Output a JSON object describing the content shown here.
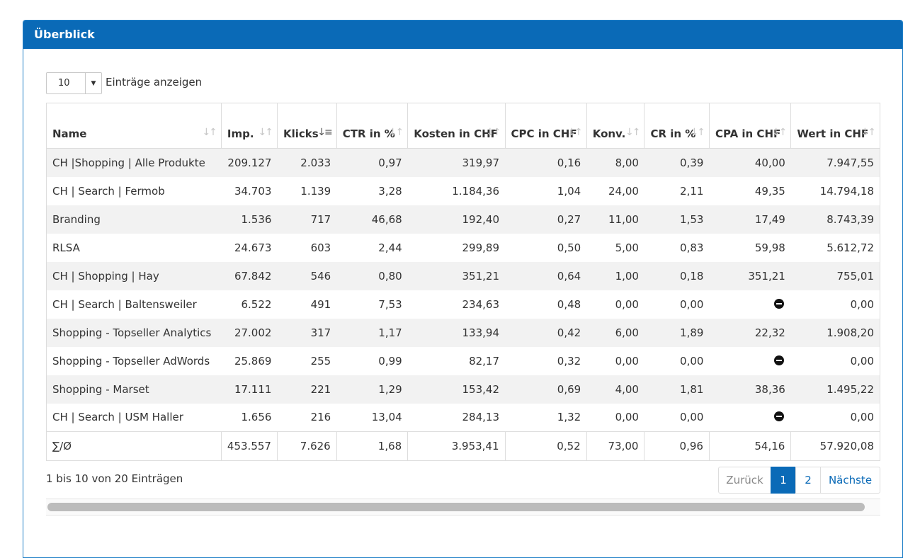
{
  "panel": {
    "title": "Überblick"
  },
  "length": {
    "value": "10",
    "label": "Einträge anzeigen"
  },
  "columns": [
    {
      "label": "Name",
      "sort": "none"
    },
    {
      "label": "Imp.",
      "sort": "none"
    },
    {
      "label": "Klicks",
      "sort": "desc"
    },
    {
      "label": "CTR in %",
      "sort": "none"
    },
    {
      "label": "Kosten in CHF",
      "sort": "none"
    },
    {
      "label": "CPC in CHF",
      "sort": "none"
    },
    {
      "label": "Konv.",
      "sort": "none"
    },
    {
      "label": "CR in %",
      "sort": "none"
    },
    {
      "label": "CPA in CHF",
      "sort": "none"
    },
    {
      "label": "Wert in CHF",
      "sort": "none"
    }
  ],
  "rows": [
    [
      "CH |Shopping | Alle Produkte",
      "209.127",
      "2.033",
      "0,97",
      "319,97",
      "0,16",
      "8,00",
      "0,39",
      "40,00",
      "7.947,55"
    ],
    [
      "CH | Search | Fermob",
      "34.703",
      "1.139",
      "3,28",
      "1.184,36",
      "1,04",
      "24,00",
      "2,11",
      "49,35",
      "14.794,18"
    ],
    [
      "Branding",
      "1.536",
      "717",
      "46,68",
      "192,40",
      "0,27",
      "11,00",
      "1,53",
      "17,49",
      "8.743,39"
    ],
    [
      "RLSA",
      "24.673",
      "603",
      "2,44",
      "299,89",
      "0,50",
      "5,00",
      "0,83",
      "59,98",
      "5.612,72"
    ],
    [
      "CH | Shopping | Hay",
      "67.842",
      "546",
      "0,80",
      "351,21",
      "0,64",
      "1,00",
      "0,18",
      "351,21",
      "755,01"
    ],
    [
      "CH | Search | Baltensweiler",
      "6.522",
      "491",
      "7,53",
      "234,63",
      "0,48",
      "0,00",
      "0,00",
      "",
      "0,00"
    ],
    [
      "Shopping - Topseller Analytics",
      "27.002",
      "317",
      "1,17",
      "133,94",
      "0,42",
      "6,00",
      "1,89",
      "22,32",
      "1.908,20"
    ],
    [
      "Shopping - Topseller AdWords",
      "25.869",
      "255",
      "0,99",
      "82,17",
      "0,32",
      "0,00",
      "0,00",
      "",
      "0,00"
    ],
    [
      "Shopping - Marset",
      "17.111",
      "221",
      "1,29",
      "153,42",
      "0,69",
      "4,00",
      "1,81",
      "38,36",
      "1.495,22"
    ],
    [
      "CH | Search | USM Haller",
      "1.656",
      "216",
      "13,04",
      "284,13",
      "1,32",
      "0,00",
      "0,00",
      "",
      "0,00"
    ]
  ],
  "na_icon": "minus-circle-icon",
  "totals": [
    "∑/Ø",
    "453.557",
    "7.626",
    "1,68",
    "3.953,41",
    "0,52",
    "73,00",
    "0,96",
    "54,16",
    "57.920,08"
  ],
  "info": "1 bis 10 von 20 Einträgen",
  "pagination": {
    "prev": "Zurück",
    "pages": [
      "1",
      "2"
    ],
    "current": "1",
    "next": "Nächste"
  },
  "colors": {
    "header": "#0a6ab7",
    "active_page": "#0a6ab7",
    "stripe": "#f2f2f2"
  }
}
